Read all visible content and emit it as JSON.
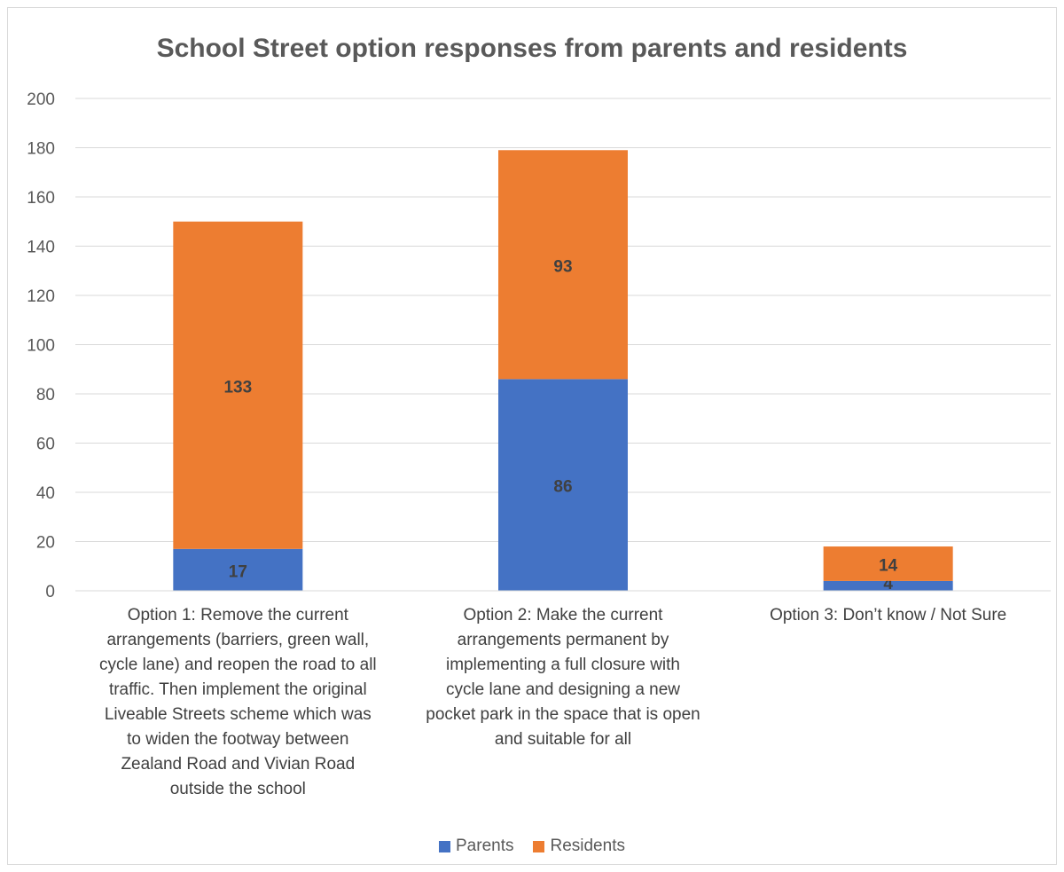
{
  "chart_data": {
    "type": "bar",
    "stacked": true,
    "title": "School Street option responses from parents and residents",
    "categories": [
      "Option 1: Remove the current arrangements (barriers, green wall, cycle lane) and reopen the road to all traffic. Then implement the original Liveable Streets scheme which was to widen the footway between Zealand Road and Vivian Road outside the school",
      "Option 2: Make the current arrangements permanent by implementing a full closure with cycle lane and designing a new pocket park in the space that is open and suitable for all",
      "Option 3: Don’t know / Not Sure"
    ],
    "category_lines": [
      [
        "Option 1: Remove the current",
        "arrangements (barriers, green wall,",
        "cycle lane) and reopen the road to all",
        "traffic. Then implement the original",
        "Liveable Streets scheme which was",
        "to widen the footway between",
        "Zealand Road and Vivian Road",
        "outside the school"
      ],
      [
        "Option 2: Make the current",
        "arrangements permanent by",
        "implementing a full closure with",
        "cycle lane and designing a new",
        "pocket park in the space that is open",
        "and suitable for all"
      ],
      [
        "Option 3: Don’t know / Not Sure"
      ]
    ],
    "series": [
      {
        "name": "Parents",
        "color": "#4472C4",
        "values": [
          17,
          86,
          4
        ]
      },
      {
        "name": "Residents",
        "color": "#ED7D31",
        "values": [
          133,
          93,
          14
        ]
      }
    ],
    "ylim": [
      0,
      200
    ],
    "yticks": [
      0,
      20,
      40,
      60,
      80,
      100,
      120,
      140,
      160,
      180,
      200
    ],
    "grid": true,
    "legend_position": "bottom",
    "xlabel": "",
    "ylabel": ""
  }
}
